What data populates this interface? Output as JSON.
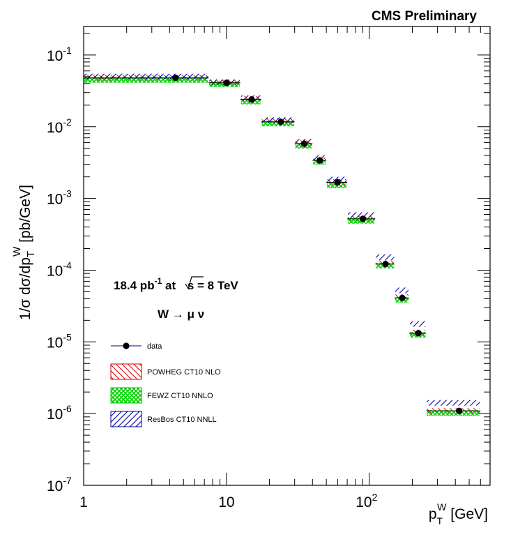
{
  "chart_data": {
    "type": "scatter",
    "title": "CMS Preliminary",
    "xlabel": {
      "main": "p",
      "sub": "T",
      "sup": "W",
      "unit": "[GeV]"
    },
    "ylabel": "1/σ dσ/dp_T^W [pb/GeV]",
    "xscale": "log",
    "yscale": "log",
    "xlim": [
      1,
      700
    ],
    "ylim": [
      1e-07,
      0.25
    ],
    "grid": false,
    "x_ticks": [
      {
        "value": 1,
        "base": "1",
        "exp": ""
      },
      {
        "value": 10,
        "base": "10",
        "exp": ""
      },
      {
        "value": 100,
        "base": "10",
        "exp": "2"
      }
    ],
    "y_ticks": [
      {
        "value": 1e-07,
        "base": "10",
        "exp": "-7"
      },
      {
        "value": 1e-06,
        "base": "10",
        "exp": "-6"
      },
      {
        "value": 1e-05,
        "base": "10",
        "exp": "-5"
      },
      {
        "value": 0.0001,
        "base": "10",
        "exp": "-4"
      },
      {
        "value": 0.001,
        "base": "10",
        "exp": "-3"
      },
      {
        "value": 0.01,
        "base": "10",
        "exp": "-2"
      },
      {
        "value": 0.1,
        "base": "10",
        "exp": "-1"
      }
    ],
    "bins": [
      [
        1,
        7.5
      ],
      [
        7.5,
        12.5
      ],
      [
        12.5,
        17.5
      ],
      [
        17.5,
        30
      ],
      [
        30,
        40
      ],
      [
        40,
        50
      ],
      [
        50,
        70
      ],
      [
        70,
        110
      ],
      [
        110,
        150
      ],
      [
        150,
        190
      ],
      [
        190,
        250
      ],
      [
        250,
        600
      ]
    ],
    "series": [
      {
        "name": "data",
        "x": [
          4.4,
          10,
          15,
          24,
          35,
          45,
          60,
          90,
          130,
          170,
          220,
          425
        ],
        "y": [
          0.048,
          0.041,
          0.024,
          0.0117,
          0.0058,
          0.0034,
          0.00168,
          0.00052,
          0.000122,
          4.1e-05,
          1.32e-05,
          1.09e-06
        ],
        "color": "#000000"
      },
      {
        "name": "POWHEG CT10 NLO",
        "y": [
          0.048,
          0.041,
          0.0245,
          0.0121,
          0.0059,
          0.0034,
          0.0017,
          0.00052,
          0.000125,
          4.2e-05,
          1.35e-05,
          1.09e-06
        ],
        "color": "#cc0000"
      },
      {
        "name": "FEWZ CT10 NNLO",
        "y": [
          0.047,
          0.041,
          0.0235,
          0.0116,
          0.0057,
          0.0034,
          0.0016,
          0.00051,
          0.000121,
          4.05e-05,
          1.31e-05,
          1.07e-06
        ],
        "color": "#00cc00"
      },
      {
        "name": "ResBos CT10 NNLL",
        "y": [
          0.048,
          0.04,
          0.024,
          0.0118,
          0.0059,
          0.0035,
          0.00175,
          0.00056,
          0.000145,
          5e-05,
          1.7e-05,
          1.35e-06
        ],
        "color": "#00008b"
      }
    ],
    "annotations": {
      "lumi_value": "18.4 pb",
      "lumi_exp": "-1",
      "lumi_rest": " at ",
      "sqrt_s": "s = 8 TeV",
      "process": "W → μ ν"
    },
    "legend_placement": "lower-left"
  }
}
